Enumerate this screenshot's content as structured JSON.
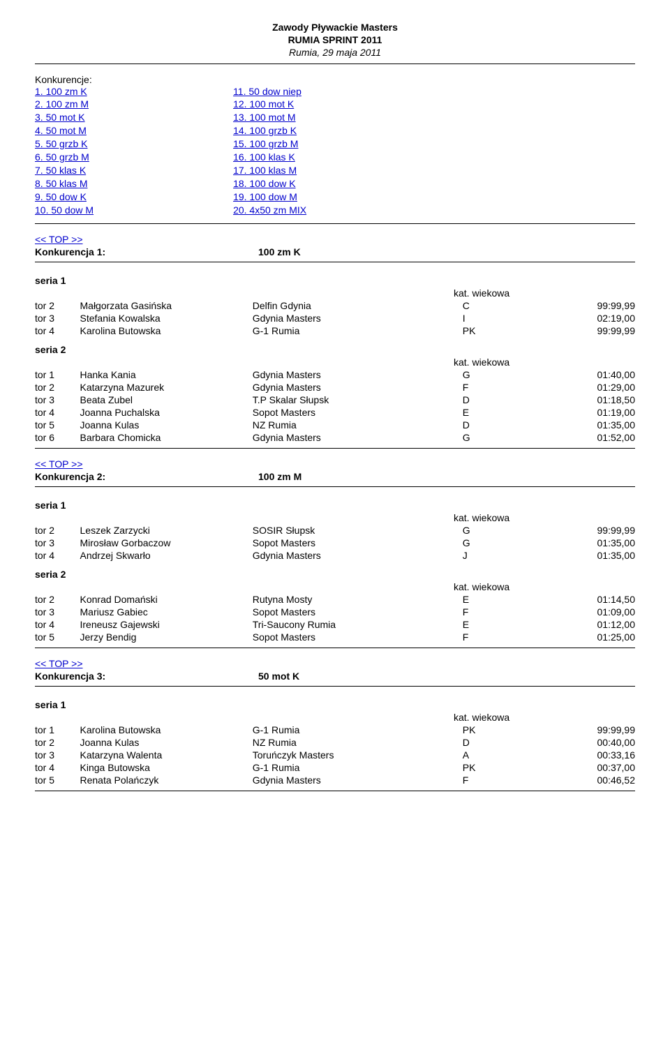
{
  "header": {
    "line1": "Zawody Pływackie Masters",
    "line2": "RUMIA SPRINT 2011",
    "line3": "Rumia, 29 maja 2011"
  },
  "konk_label": "Konkurencje:",
  "konk_left": [
    "1. 100 zm K",
    "2. 100 zm M",
    "3. 50 mot K",
    "4. 50 mot M",
    "5. 50 grzb K",
    "6. 50 grzb M",
    "7. 50 klas K",
    "8. 50 klas M",
    "9. 50 dow K",
    "10. 50 dow M"
  ],
  "konk_right": [
    "11. 50 dow niep",
    "12. 100 mot K",
    "13. 100 mot M",
    "14. 100 grzb K",
    "15. 100 grzb M",
    "16. 100 klas K",
    "17. 100 klas M",
    "18. 100 dow K",
    "19. 100 dow M",
    "20. 4x50 zm MIX"
  ],
  "top_link": "<< TOP >>",
  "kat_label": "kat. wiekowa",
  "events": [
    {
      "title_left": "Konkurencja 1:",
      "title_right": "100 zm K",
      "series": [
        {
          "label": "seria 1",
          "rows": [
            {
              "tor": "tor 2",
              "name": "Małgorzata Gasińska",
              "club": "Delfin Gdynia",
              "kat": "C",
              "time": "99:99,99"
            },
            {
              "tor": "tor 3",
              "name": "Stefania Kowalska",
              "club": "Gdynia Masters",
              "kat": "I",
              "time": "02:19,00"
            },
            {
              "tor": "tor 4",
              "name": "Karolina Butowska",
              "club": "G-1 Rumia",
              "kat": "PK",
              "time": "99:99,99"
            }
          ]
        },
        {
          "label": "seria 2",
          "rows": [
            {
              "tor": "tor 1",
              "name": "Hanka Kania",
              "club": "Gdynia Masters",
              "kat": "G",
              "time": "01:40,00"
            },
            {
              "tor": "tor 2",
              "name": "Katarzyna Mazurek",
              "club": "Gdynia Masters",
              "kat": "F",
              "time": "01:29,00"
            },
            {
              "tor": "tor 3",
              "name": "Beata Zubel",
              "club": "T.P Skalar Słupsk",
              "kat": "D",
              "time": "01:18,50"
            },
            {
              "tor": "tor 4",
              "name": "Joanna Puchalska",
              "club": "Sopot Masters",
              "kat": "E",
              "time": "01:19,00"
            },
            {
              "tor": "tor 5",
              "name": "Joanna Kulas",
              "club": "NZ Rumia",
              "kat": "D",
              "time": "01:35,00"
            },
            {
              "tor": "tor 6",
              "name": "Barbara Chomicka",
              "club": "Gdynia Masters",
              "kat": "G",
              "time": "01:52,00"
            }
          ]
        }
      ]
    },
    {
      "title_left": "Konkurencja 2:",
      "title_right": "100 zm M",
      "series": [
        {
          "label": "seria 1",
          "rows": [
            {
              "tor": "tor 2",
              "name": "Leszek Zarzycki",
              "club": "SOSIR Słupsk",
              "kat": "G",
              "time": "99:99,99"
            },
            {
              "tor": "tor 3",
              "name": "Mirosław Gorbaczow",
              "club": "Sopot Masters",
              "kat": "G",
              "time": "01:35,00"
            },
            {
              "tor": "tor 4",
              "name": "Andrzej Skwarło",
              "club": "Gdynia Masters",
              "kat": "J",
              "time": "01:35,00"
            }
          ]
        },
        {
          "label": "seria 2",
          "rows": [
            {
              "tor": "tor 2",
              "name": "Konrad Domański",
              "club": "Rutyna Mosty",
              "kat": "E",
              "time": "01:14,50"
            },
            {
              "tor": "tor 3",
              "name": "Mariusz Gabiec",
              "club": "Sopot Masters",
              "kat": "F",
              "time": "01:09,00"
            },
            {
              "tor": "tor 4",
              "name": "Ireneusz Gajewski",
              "club": "Tri-Saucony Rumia",
              "kat": "E",
              "time": "01:12,00"
            },
            {
              "tor": "tor 5",
              "name": "Jerzy Bendig",
              "club": "Sopot Masters",
              "kat": "F",
              "time": "01:25,00"
            }
          ]
        }
      ]
    },
    {
      "title_left": "Konkurencja 3:",
      "title_right": "50 mot K",
      "series": [
        {
          "label": "seria 1",
          "rows": [
            {
              "tor": "tor 1",
              "name": "Karolina Butowska",
              "club": "G-1 Rumia",
              "kat": "PK",
              "time": "99:99,99"
            },
            {
              "tor": "tor 2",
              "name": "Joanna Kulas",
              "club": "NZ Rumia",
              "kat": "D",
              "time": "00:40,00"
            },
            {
              "tor": "tor 3",
              "name": "Katarzyna Walenta",
              "club": "Toruńczyk Masters",
              "kat": "A",
              "time": "00:33,16"
            },
            {
              "tor": "tor 4",
              "name": "Kinga Butowska",
              "club": "G-1 Rumia",
              "kat": "PK",
              "time": "00:37,00"
            },
            {
              "tor": "tor 5",
              "name": "Renata Polańczyk",
              "club": "Gdynia Masters",
              "kat": "F",
              "time": "00:46,52"
            }
          ]
        }
      ]
    }
  ]
}
